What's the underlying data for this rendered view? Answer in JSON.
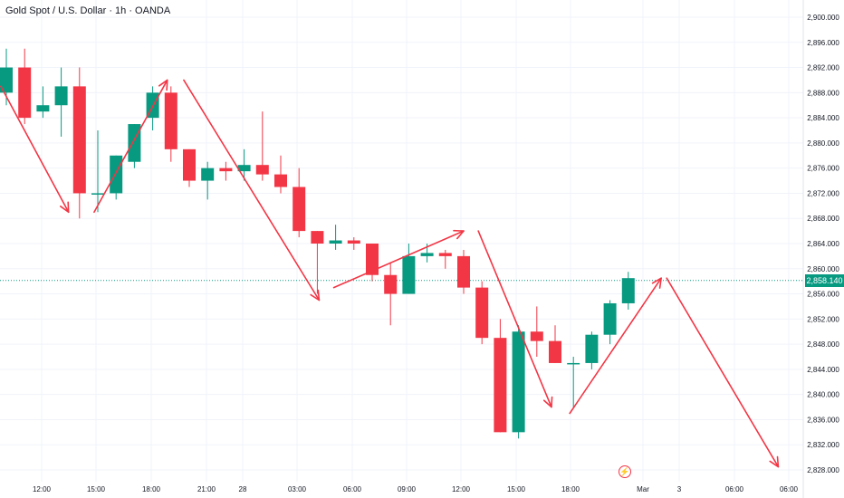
{
  "title": "Gold Spot / U.S. Dollar · 1h · OANDA",
  "last_price_label": "2,858.140",
  "event_icon": "lightning-icon",
  "colors": {
    "up": "#089981",
    "down": "#f23645",
    "arrow": "#f23645",
    "last_price": "#089981",
    "grid": "#f0f3fa",
    "axis_text": "#131722"
  },
  "chart_data": {
    "type": "candlestick",
    "symbol": "Gold Spot / U.S. Dollar",
    "interval": "1h",
    "source": "OANDA",
    "ylim": [
      2826,
      2902
    ],
    "y_ticks": [
      2828,
      2832,
      2836,
      2840,
      2844,
      2848,
      2852,
      2856,
      2860,
      2864,
      2868,
      2872,
      2876,
      2880,
      2884,
      2888,
      2892,
      2896,
      2900
    ],
    "y_tick_labels": [
      "2,828.000",
      "2,832.000",
      "2,836.000",
      "2,840.000",
      "2,844.000",
      "2,848.000",
      "2,852.000",
      "2,856.000",
      "2,860.000",
      "2,864.000",
      "2,868.000",
      "2,872.000",
      "2,876.000",
      "2,880.000",
      "2,884.000",
      "2,888.000",
      "2,892.000",
      "2,896.000",
      "2,900.000"
    ],
    "x_tick_labels": [
      "12:00",
      "15:00",
      "18:00",
      "21:00",
      "28",
      "03:00",
      "06:00",
      "09:00",
      "12:00",
      "15:00",
      "18:00",
      "Mar",
      "3",
      "06:00",
      "06:00"
    ],
    "last_price": 2858.14,
    "candles": [
      {
        "o": 2888,
        "h": 2895,
        "l": 2886,
        "c": 2892
      },
      {
        "o": 2892,
        "h": 2895,
        "l": 2883,
        "c": 2884
      },
      {
        "o": 2885,
        "h": 2889,
        "l": 2884,
        "c": 2886
      },
      {
        "o": 2886,
        "h": 2892,
        "l": 2881,
        "c": 2889
      },
      {
        "o": 2889,
        "h": 2892,
        "l": 2868,
        "c": 2872
      },
      {
        "o": 2872,
        "h": 2882,
        "l": 2869,
        "c": 2872
      },
      {
        "o": 2872,
        "h": 2878,
        "l": 2871,
        "c": 2878
      },
      {
        "o": 2877,
        "h": 2883,
        "l": 2876,
        "c": 2883
      },
      {
        "o": 2884,
        "h": 2889,
        "l": 2882,
        "c": 2888
      },
      {
        "o": 2888,
        "h": 2889,
        "l": 2877,
        "c": 2879
      },
      {
        "o": 2879,
        "h": 2879,
        "l": 2873,
        "c": 2874
      },
      {
        "o": 2874,
        "h": 2877,
        "l": 2871,
        "c": 2876
      },
      {
        "o": 2876,
        "h": 2877,
        "l": 2874,
        "c": 2875.5
      },
      {
        "o": 2875.5,
        "h": 2879,
        "l": 2874,
        "c": 2876.5
      },
      {
        "o": 2876.5,
        "h": 2885,
        "l": 2874,
        "c": 2875
      },
      {
        "o": 2875,
        "h": 2878,
        "l": 2872,
        "c": 2873
      },
      {
        "o": 2873,
        "h": 2876,
        "l": 2865,
        "c": 2866
      },
      {
        "o": 2866,
        "h": 2866,
        "l": 2856,
        "c": 2864
      },
      {
        "o": 2864,
        "h": 2867,
        "l": 2863,
        "c": 2864.5
      },
      {
        "o": 2864.5,
        "h": 2865,
        "l": 2863,
        "c": 2864
      },
      {
        "o": 2864,
        "h": 2864,
        "l": 2858,
        "c": 2859
      },
      {
        "o": 2859,
        "h": 2861,
        "l": 2851,
        "c": 2856
      },
      {
        "o": 2856,
        "h": 2864,
        "l": 2856,
        "c": 2862
      },
      {
        "o": 2862,
        "h": 2864,
        "l": 2861,
        "c": 2862.5
      },
      {
        "o": 2862.5,
        "h": 2863,
        "l": 2860,
        "c": 2862
      },
      {
        "o": 2862,
        "h": 2863,
        "l": 2856,
        "c": 2857
      },
      {
        "o": 2857,
        "h": 2858,
        "l": 2848,
        "c": 2849
      },
      {
        "o": 2849,
        "h": 2852,
        "l": 2834,
        "c": 2834
      },
      {
        "o": 2834,
        "h": 2851,
        "l": 2833,
        "c": 2850
      },
      {
        "o": 2850,
        "h": 2854,
        "l": 2846,
        "c": 2848.5
      },
      {
        "o": 2848.5,
        "h": 2851,
        "l": 2845,
        "c": 2845
      },
      {
        "o": 2845,
        "h": 2846,
        "l": 2838,
        "c": 2845
      },
      {
        "o": 2845,
        "h": 2850,
        "l": 2844,
        "c": 2849.5
      },
      {
        "o": 2849.5,
        "h": 2855,
        "l": 2848,
        "c": 2854.5
      },
      {
        "o": 2854.5,
        "h": 2859.5,
        "l": 2853.5,
        "c": 2858.5
      }
    ],
    "annotations": [
      {
        "type": "arrow",
        "from": [
          -0.3,
          2889
        ],
        "to": [
          3.4,
          2869
        ]
      },
      {
        "type": "arrow",
        "from": [
          4.8,
          2869
        ],
        "to": [
          8.8,
          2890
        ]
      },
      {
        "type": "arrow",
        "from": [
          9.7,
          2890
        ],
        "to": [
          17.1,
          2855
        ]
      },
      {
        "type": "arrow",
        "from": [
          17.9,
          2857
        ],
        "to": [
          25.0,
          2866
        ]
      },
      {
        "type": "arrow",
        "from": [
          25.8,
          2866
        ],
        "to": [
          29.8,
          2838
        ]
      },
      {
        "type": "arrow",
        "from": [
          30.8,
          2837
        ],
        "to": [
          35.8,
          2858.5
        ]
      },
      {
        "type": "arrow",
        "from": [
          36.1,
          2858.5
        ],
        "to": [
          42.2,
          2828.5
        ]
      }
    ],
    "grid": true
  }
}
